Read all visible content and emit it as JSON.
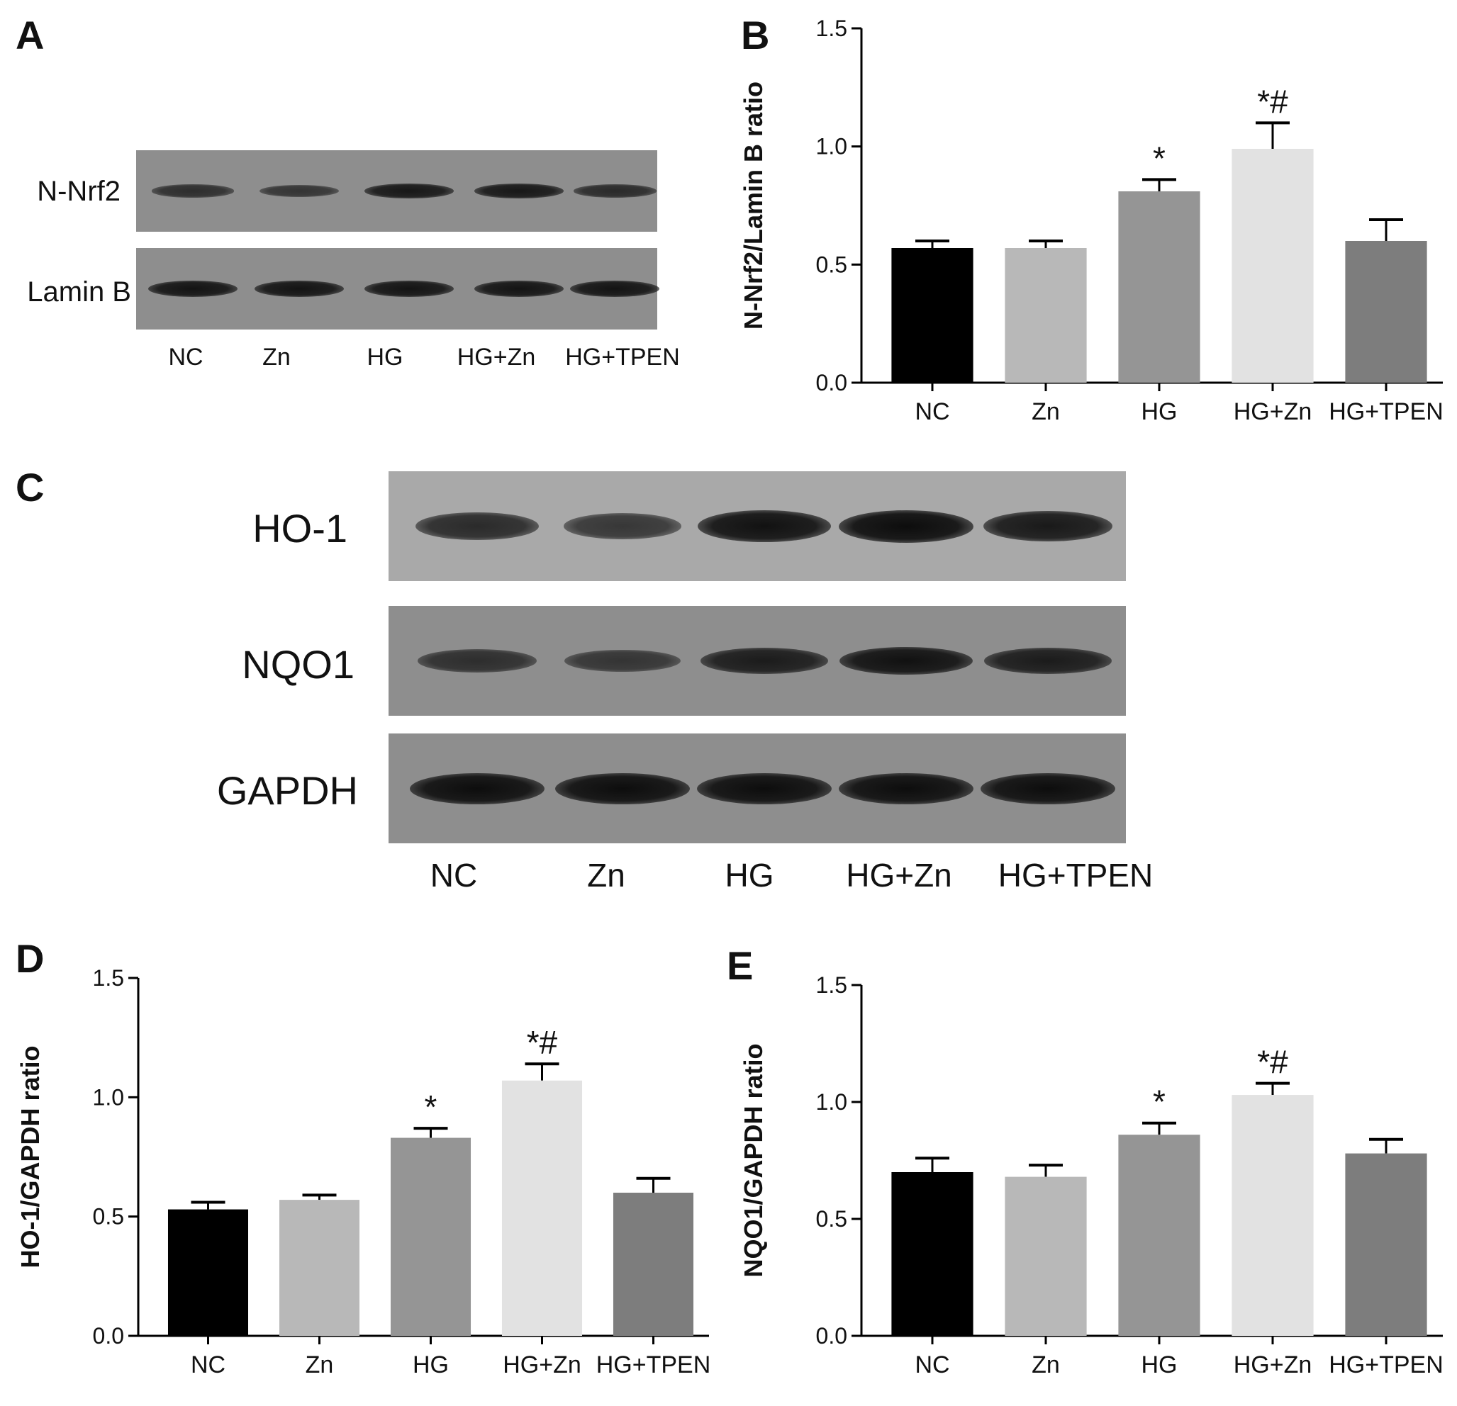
{
  "panels": {
    "a": {
      "letter": "A",
      "bands": [
        "N-Nrf2",
        "Lamin B"
      ],
      "lanes": [
        "NC",
        "Zn",
        "HG",
        "HG+Zn",
        "HG+TPEN"
      ]
    },
    "b": {
      "letter": "B"
    },
    "c": {
      "letter": "C",
      "bands": [
        "HO-1",
        "NQO1",
        "GAPDH"
      ],
      "lanes": [
        "NC",
        "Zn",
        "HG",
        "HG+Zn",
        "HG+TPEN"
      ]
    },
    "d": {
      "letter": "D"
    },
    "e": {
      "letter": "E"
    }
  },
  "blot_intensity": {
    "a": [
      [
        0.55,
        0.45,
        0.85,
        0.85,
        0.6
      ],
      [
        0.9,
        0.9,
        0.9,
        0.9,
        0.9
      ]
    ],
    "c": [
      [
        0.65,
        0.5,
        0.95,
        1.0,
        0.85
      ],
      [
        0.55,
        0.45,
        0.8,
        0.95,
        0.8
      ],
      [
        1.0,
        1.0,
        1.0,
        1.0,
        1.0
      ]
    ]
  },
  "chart_data": [
    {
      "panel": "B",
      "type": "bar",
      "categories": [
        "NC",
        "Zn",
        "HG",
        "HG+Zn",
        "HG+TPEN"
      ],
      "values": [
        0.57,
        0.57,
        0.81,
        0.99,
        0.6
      ],
      "errors": [
        0.03,
        0.03,
        0.05,
        0.11,
        0.09
      ],
      "annotations": [
        "",
        "",
        "*",
        "*#",
        ""
      ],
      "colors": [
        "#000000",
        "#b8b8b8",
        "#959595",
        "#e2e2e2",
        "#7d7d7d"
      ],
      "xlabel": "",
      "ylabel": "N-Nrf2/Lamin B ratio",
      "ylim": [
        0,
        1.5
      ],
      "yticks": [
        "0.0",
        "0.5",
        "1.0",
        "1.5"
      ],
      "grid": false
    },
    {
      "panel": "D",
      "type": "bar",
      "categories": [
        "NC",
        "Zn",
        "HG",
        "HG+Zn",
        "HG+TPEN"
      ],
      "values": [
        0.53,
        0.57,
        0.83,
        1.07,
        0.6
      ],
      "errors": [
        0.03,
        0.02,
        0.04,
        0.07,
        0.06
      ],
      "annotations": [
        "",
        "",
        "*",
        "*#",
        ""
      ],
      "colors": [
        "#000000",
        "#b8b8b8",
        "#959595",
        "#e2e2e2",
        "#7d7d7d"
      ],
      "xlabel": "",
      "ylabel": "HO-1/GAPDH ratio",
      "ylim": [
        0,
        1.5
      ],
      "yticks": [
        "0.0",
        "0.5",
        "1.0",
        "1.5"
      ],
      "grid": false
    },
    {
      "panel": "E",
      "type": "bar",
      "categories": [
        "NC",
        "Zn",
        "HG",
        "HG+Zn",
        "HG+TPEN"
      ],
      "values": [
        0.7,
        0.68,
        0.86,
        1.03,
        0.78
      ],
      "errors": [
        0.06,
        0.05,
        0.05,
        0.05,
        0.06
      ],
      "annotations": [
        "",
        "",
        "*",
        "*#",
        ""
      ],
      "colors": [
        "#000000",
        "#b8b8b8",
        "#959595",
        "#e2e2e2",
        "#7d7d7d"
      ],
      "xlabel": "",
      "ylabel": "NQO1/GAPDH ratio",
      "ylim": [
        0,
        1.5
      ],
      "yticks": [
        "0.0",
        "0.5",
        "1.0",
        "1.5"
      ],
      "grid": false
    }
  ]
}
